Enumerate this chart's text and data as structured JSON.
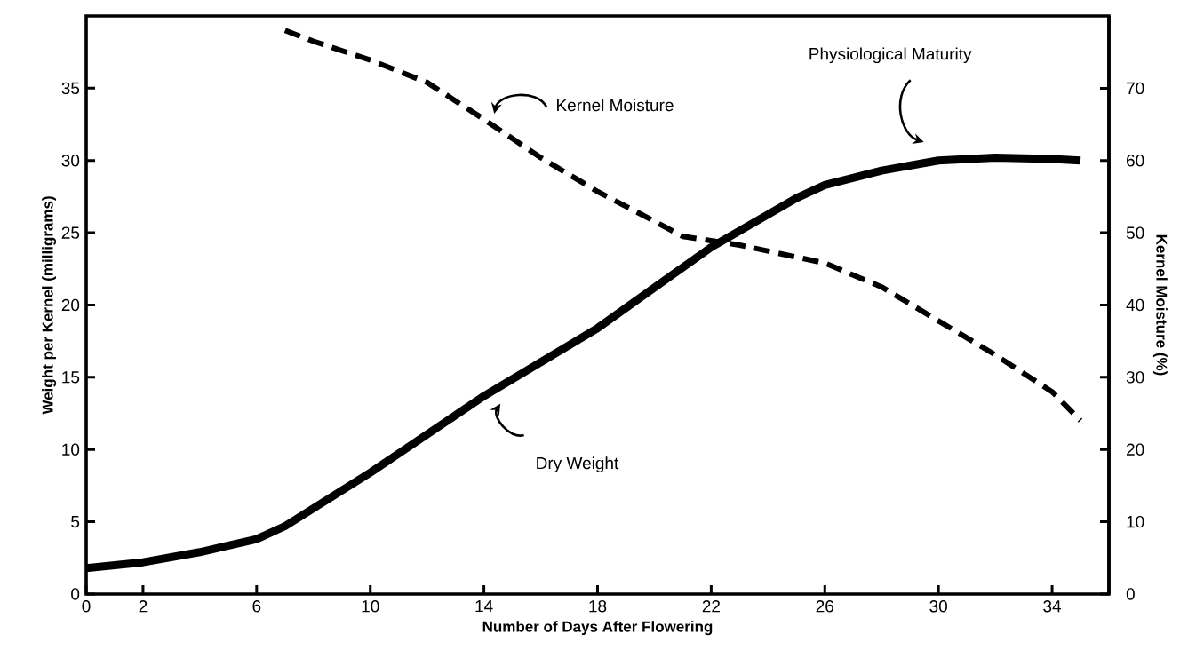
{
  "chart_data": {
    "type": "line",
    "xlabel": "Number of Days After Flowering",
    "ylabel": "Weight per Kernel (milligrams)",
    "y2label": "Kernel Moisture (%)",
    "xlim": [
      0,
      36
    ],
    "xticks": [
      0,
      2,
      6,
      10,
      14,
      18,
      22,
      26,
      30,
      34
    ],
    "ylim": [
      0,
      40
    ],
    "yticks": [
      0,
      5,
      10,
      15,
      20,
      25,
      30,
      35
    ],
    "y2lim": [
      0,
      80
    ],
    "y2ticks": [
      0,
      10,
      20,
      30,
      40,
      50,
      60,
      70
    ],
    "series": [
      {
        "color": "#000000",
        "line_style": "solid",
        "axis": "y",
        "x": [
          0,
          2,
          4,
          6,
          7,
          10,
          14,
          18,
          22,
          25,
          26,
          28,
          30,
          32,
          34,
          35
        ],
        "values": [
          1.8,
          2.2,
          2.9,
          3.8,
          4.7,
          8.4,
          13.7,
          18.4,
          24.0,
          27.4,
          28.3,
          29.3,
          30.0,
          30.2,
          30.1,
          30.0
        ]
      },
      {
        "color": "#000000",
        "line_style": "dashed",
        "axis": "y2",
        "x": [
          7,
          8,
          10,
          12,
          14,
          16,
          18,
          20,
          21,
          23,
          26,
          28,
          30,
          32,
          34,
          35
        ],
        "values": [
          78,
          76.5,
          73.9,
          70.8,
          65.7,
          60.4,
          55.7,
          51.6,
          49.5,
          48.3,
          45.8,
          42.5,
          37.8,
          33.1,
          28,
          24
        ]
      }
    ],
    "annotations": [
      "Kernel Moisture",
      "Physiological Maturity",
      "Dry Weight"
    ]
  }
}
